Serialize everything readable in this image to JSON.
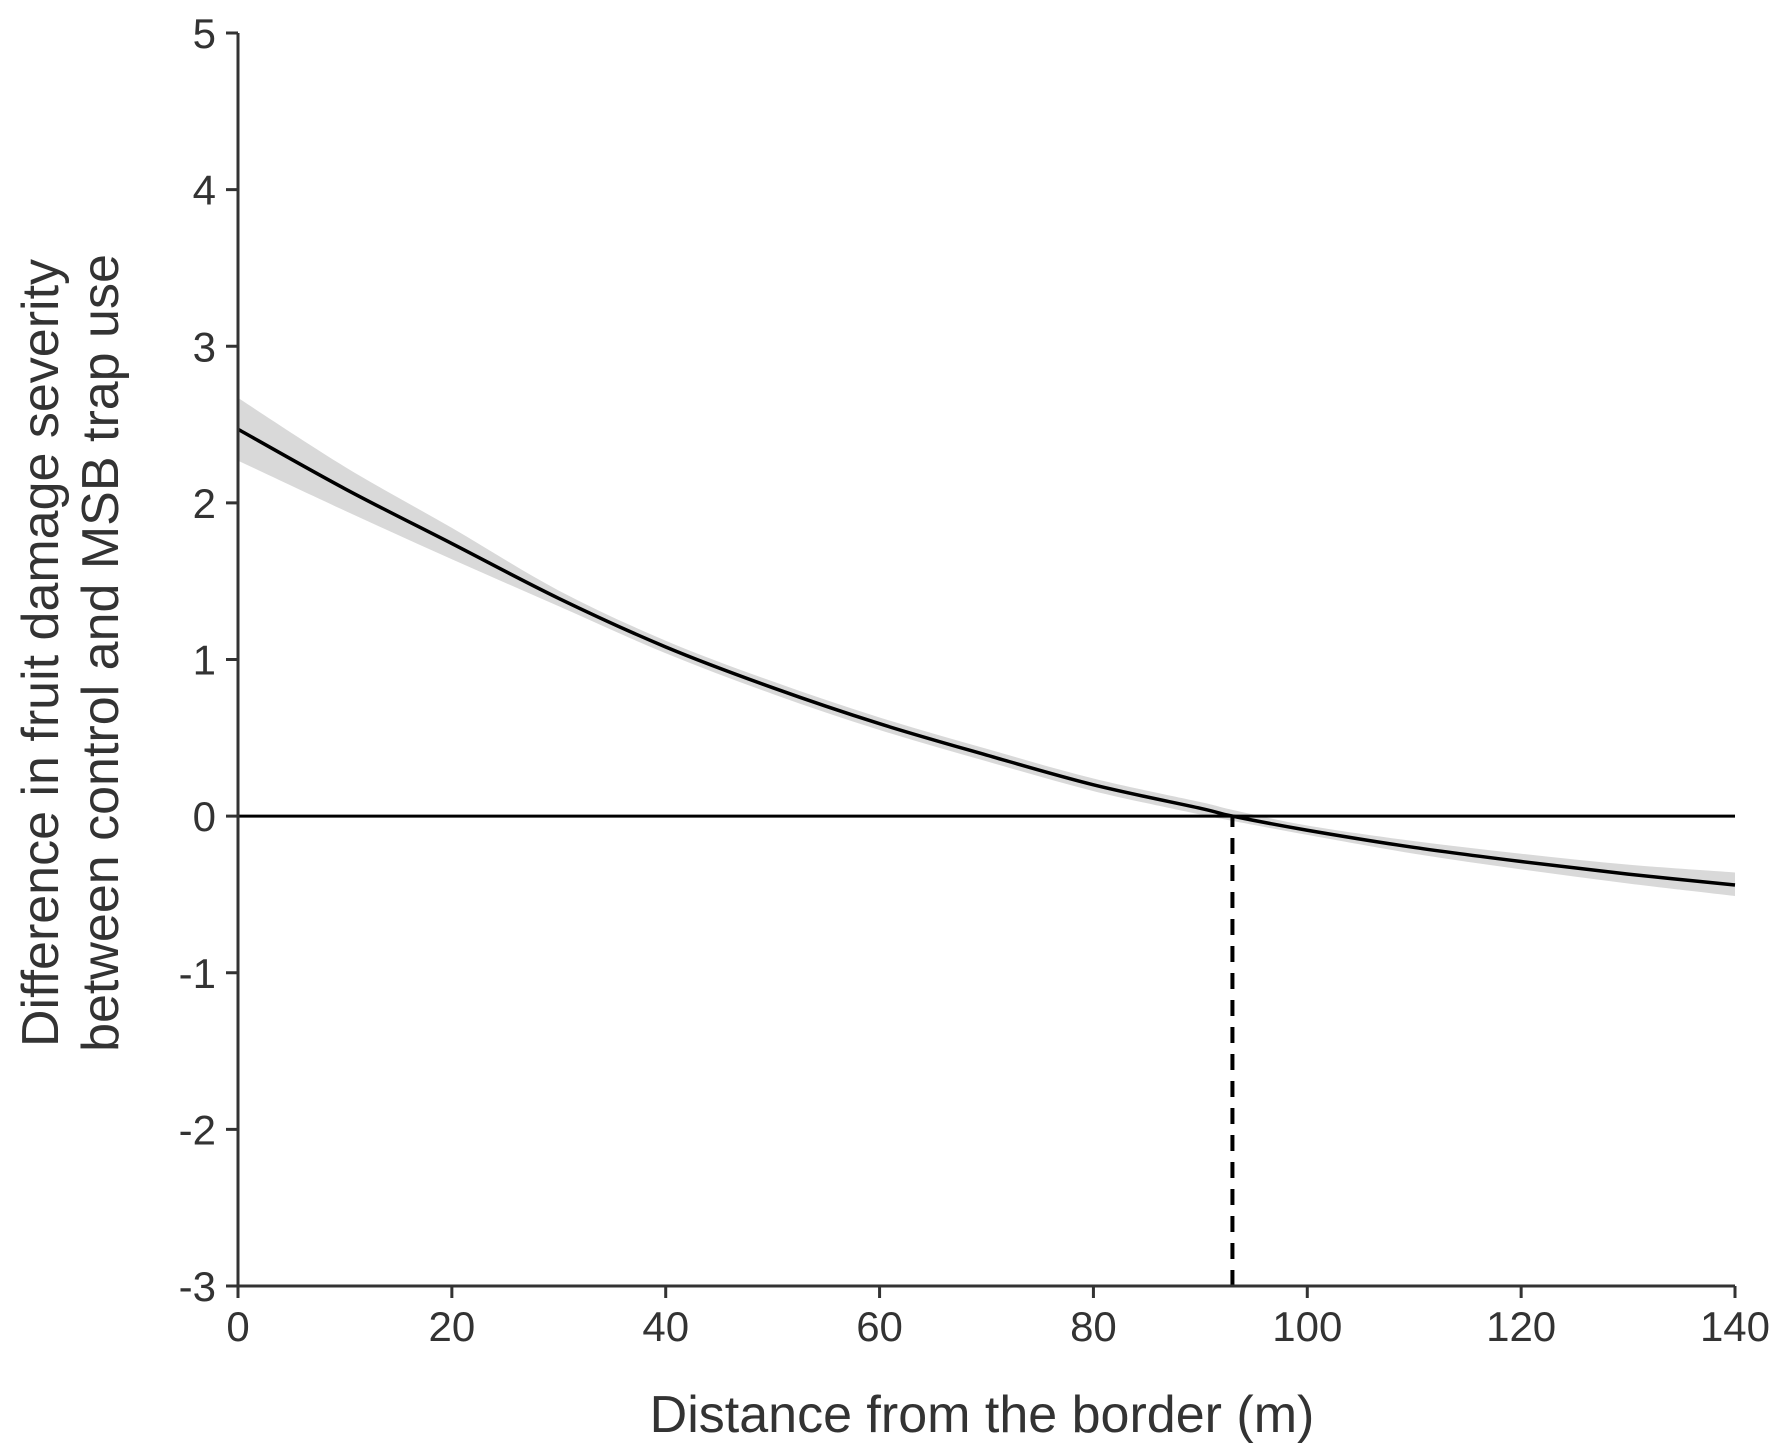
{
  "chart_data": {
    "type": "line",
    "title": "",
    "xlabel": "Distance from the border (m)",
    "ylabel_lines": [
      "Difference in fruit damage severity",
      "between control and MSB trap use"
    ],
    "xlim": [
      0,
      140
    ],
    "ylim": [
      -3,
      5
    ],
    "xticks": [
      0,
      20,
      40,
      60,
      80,
      100,
      120,
      140
    ],
    "yticks": [
      -3,
      -2,
      -1,
      0,
      1,
      2,
      3,
      4,
      5
    ],
    "xtick_labels": [
      "0",
      "20",
      "40",
      "60",
      "80",
      "100",
      "120",
      "140"
    ],
    "ytick_labels": [
      "-3",
      "-2",
      "-1",
      "0",
      "1",
      "2",
      "3",
      "4",
      "5"
    ],
    "grid": false,
    "series": [
      {
        "x": [
          0,
          10,
          20,
          30,
          40,
          50,
          60,
          70,
          80,
          90,
          93,
          100,
          110,
          120,
          130,
          140
        ],
        "y": [
          2.47,
          2.09,
          1.74,
          1.39,
          1.08,
          0.82,
          0.59,
          0.39,
          0.2,
          0.05,
          0.0,
          -0.09,
          -0.2,
          -0.29,
          -0.37,
          -0.44
        ],
        "ci_lower": [
          2.27,
          1.95,
          1.64,
          1.34,
          1.04,
          0.78,
          0.55,
          0.35,
          0.16,
          0.01,
          -0.03,
          -0.12,
          -0.24,
          -0.34,
          -0.43,
          -0.51
        ],
        "ci_upper": [
          2.67,
          2.23,
          1.84,
          1.44,
          1.12,
          0.86,
          0.63,
          0.43,
          0.24,
          0.09,
          0.04,
          -0.06,
          -0.16,
          -0.24,
          -0.31,
          -0.36
        ],
        "color": "#000000",
        "band_color": "#d9d9d9"
      }
    ],
    "reference_lines": [
      {
        "type": "horizontal",
        "y": 0,
        "style": "solid",
        "color": "#000000"
      },
      {
        "type": "vertical",
        "x": 93,
        "y_from": -3,
        "y_to": 0,
        "style": "dashed",
        "color": "#000000"
      }
    ]
  }
}
